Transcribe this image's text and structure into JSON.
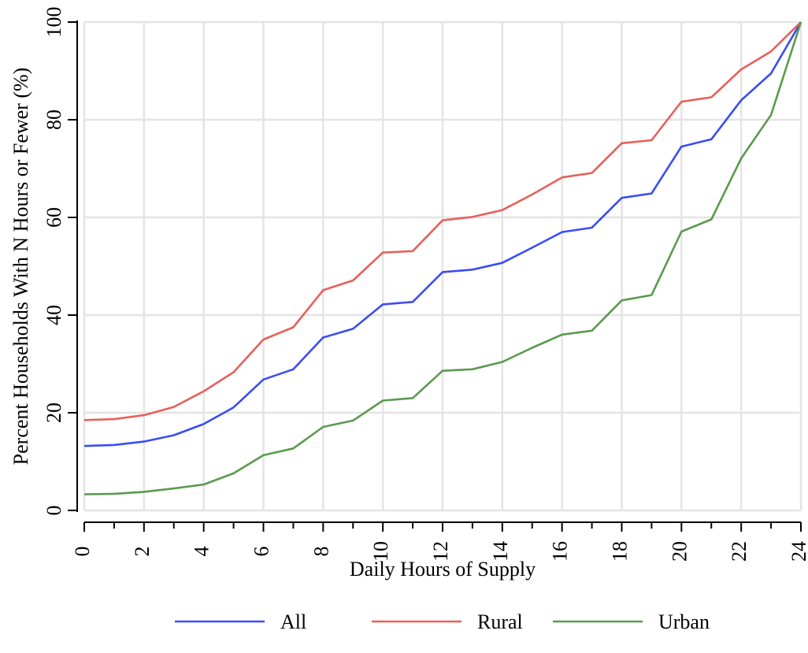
{
  "chart_data": {
    "type": "line",
    "title": "",
    "xlabel": "Daily Hours of Supply",
    "ylabel": "Percent Households With N Hours or Fewer (%)",
    "xlim": [
      0,
      24
    ],
    "ylim": [
      0,
      100
    ],
    "x": [
      0,
      1,
      2,
      3,
      4,
      5,
      6,
      7,
      8,
      9,
      10,
      11,
      12,
      13,
      14,
      15,
      16,
      17,
      18,
      19,
      20,
      21,
      22,
      23,
      24
    ],
    "xticks": [
      0,
      2,
      4,
      6,
      8,
      10,
      12,
      14,
      16,
      18,
      20,
      22,
      24
    ],
    "yticks": [
      0,
      20,
      40,
      60,
      80,
      100
    ],
    "grid": true,
    "legend_position": "bottom",
    "series": [
      {
        "name": "All",
        "color": "#3b4cf5",
        "values": [
          13.2,
          13.4,
          14.1,
          15.4,
          17.7,
          21.1,
          26.8,
          28.9,
          35.4,
          37.2,
          42.2,
          42.7,
          48.8,
          49.3,
          50.7,
          53.8,
          57.0,
          57.9,
          64.0,
          64.9,
          74.5,
          76.0,
          84.0,
          89.5,
          100
        ]
      },
      {
        "name": "Rural",
        "color": "#e8605a",
        "values": [
          18.5,
          18.7,
          19.5,
          21.2,
          24.4,
          28.3,
          35.0,
          37.5,
          45.1,
          47.1,
          52.8,
          53.1,
          59.4,
          60.1,
          61.5,
          64.7,
          68.2,
          69.1,
          75.2,
          75.8,
          83.7,
          84.6,
          90.3,
          94.0,
          100
        ]
      },
      {
        "name": "Urban",
        "color": "#5a9a4e",
        "values": [
          3.3,
          3.4,
          3.8,
          4.5,
          5.3,
          7.6,
          11.3,
          12.7,
          17.1,
          18.4,
          22.5,
          23.0,
          28.6,
          28.9,
          30.4,
          33.3,
          36.0,
          36.8,
          43.0,
          44.1,
          57.1,
          59.6,
          72.1,
          81.0,
          100
        ]
      }
    ]
  }
}
